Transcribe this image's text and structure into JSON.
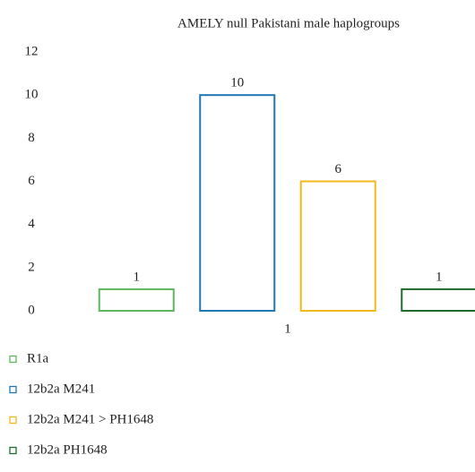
{
  "chart_data": {
    "type": "bar",
    "title": "AMELY null Pakistani male haplogroups",
    "categories": [
      "1"
    ],
    "series": [
      {
        "name": "R1a",
        "color": "#5cb85c",
        "values": [
          1
        ]
      },
      {
        "name": "12b2a M241",
        "color": "#1f78b4",
        "values": [
          10
        ]
      },
      {
        "name": "12b2a M241 > PH1648",
        "color": "#f4b81c",
        "values": [
          6
        ]
      },
      {
        "name": "12b2a PH1648",
        "color": "#1e6b30",
        "values": [
          1
        ]
      }
    ],
    "ylim": [
      0,
      12
    ],
    "yticks": [
      0,
      2,
      4,
      6,
      8,
      10,
      12
    ],
    "grid": false,
    "legend": "bottom"
  }
}
